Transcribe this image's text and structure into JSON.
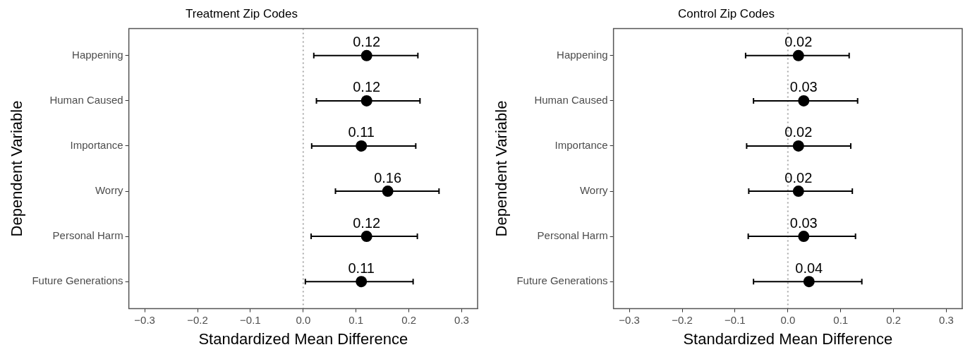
{
  "chart_data": [
    {
      "type": "scatter",
      "orientation": "horizontal",
      "title": "Treatment Zip Codes",
      "xlabel": "Standardized Mean Difference",
      "ylabel": "Dependent Variable",
      "categories": [
        "Happening",
        "Human Caused",
        "Importance",
        "Worry",
        "Personal Harm",
        "Future Generations"
      ],
      "values": [
        0.12,
        0.12,
        0.11,
        0.16,
        0.12,
        0.11
      ],
      "errors": [
        [
          0.02,
          0.217
        ],
        [
          0.025,
          0.221
        ],
        [
          0.016,
          0.213
        ],
        [
          0.061,
          0.257
        ],
        [
          0.015,
          0.216
        ],
        [
          0.004,
          0.208
        ]
      ],
      "color": "#000000",
      "marker": "circle",
      "data_labels": true,
      "grid": false,
      "legend": false,
      "xlim": [
        -0.33,
        0.33
      ],
      "xticks": [
        {
          "value": -0.3,
          "label": "−0.3"
        },
        {
          "value": -0.2,
          "label": "−0.2"
        },
        {
          "value": -0.1,
          "label": "−0.1"
        },
        {
          "value": 0,
          "label": "0.0"
        },
        0.1,
        0.2,
        0.3
      ],
      "ref_lines": [
        {
          "axis": "x",
          "value": 0,
          "color": "#aaaaaa",
          "line_style": "dotted"
        }
      ]
    },
    {
      "type": "scatter",
      "orientation": "horizontal",
      "title": "Control Zip Codes",
      "xlabel": "Standardized Mean Difference",
      "ylabel": "Dependent Variable",
      "categories": [
        "Happening",
        "Human Caused",
        "Importance",
        "Worry",
        "Personal Harm",
        "Future Generations"
      ],
      "values": [
        0.02,
        0.03,
        0.02,
        0.02,
        0.03,
        0.04
      ],
      "errors": [
        [
          -0.08,
          0.116
        ],
        [
          -0.065,
          0.132
        ],
        [
          -0.078,
          0.119
        ],
        [
          -0.074,
          0.122
        ],
        [
          -0.075,
          0.128
        ],
        [
          -0.065,
          0.14
        ]
      ],
      "color": "#000000",
      "marker": "circle",
      "data_labels": true,
      "grid": false,
      "legend": false,
      "xlim": [
        -0.33,
        0.33
      ],
      "xticks": [
        {
          "value": -0.3,
          "label": "−0.3"
        },
        {
          "value": -0.2,
          "label": "−0.2"
        },
        {
          "value": -0.1,
          "label": "−0.1"
        },
        {
          "value": 0,
          "label": "0.0"
        },
        0.1,
        0.2,
        0.3
      ],
      "ref_lines": [
        {
          "axis": "x",
          "value": 0,
          "color": "#aaaaaa",
          "line_style": "dotted"
        }
      ]
    }
  ]
}
